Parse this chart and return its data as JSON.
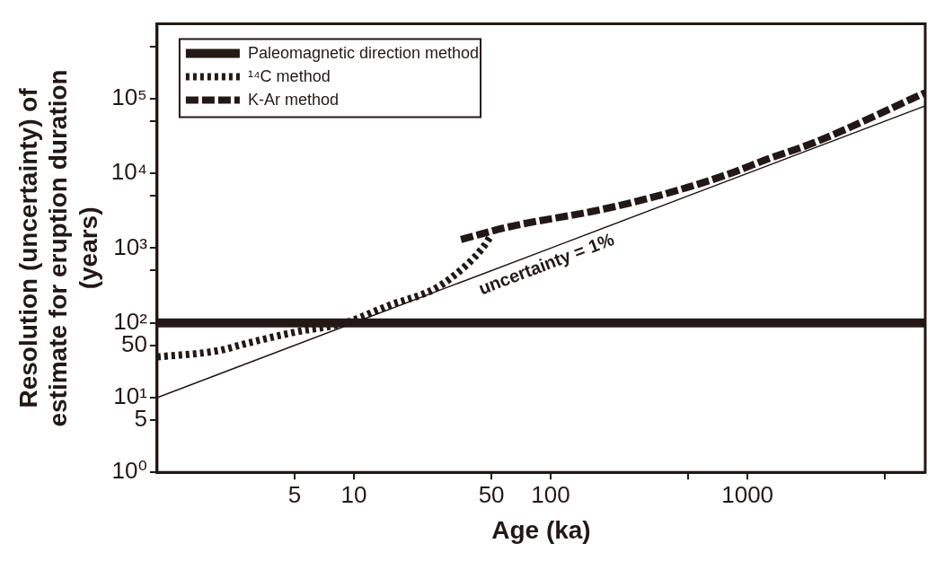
{
  "chart_data": {
    "type": "line",
    "xlabel": "Age (ka)",
    "ylabel": "Resolution (uncertainty) of estimate for eruption duration (years)",
    "log": "xy",
    "grid": false,
    "legend": "top left",
    "marker": "none",
    "xlim": [
      1,
      8000
    ],
    "xticks": [
      5,
      10,
      50,
      100,
      {
        "value": 500,
        "label": null
      },
      1000,
      {
        "value": 5000,
        "label": null
      }
    ],
    "ylim": [
      1,
      1000000
    ],
    "yticks": [
      {
        "value": 1,
        "label": "10⁰"
      },
      5,
      {
        "value": 10,
        "label": "10¹"
      },
      50,
      {
        "value": 100,
        "label": "10²"
      },
      {
        "value": 500,
        "label": null
      },
      {
        "value": 1000,
        "label": "10³"
      },
      {
        "value": 5000,
        "label": null
      },
      {
        "value": 10000,
        "label": "10⁴"
      },
      {
        "value": 50000,
        "label": null
      },
      {
        "value": 100000,
        "label": "10⁵"
      },
      {
        "value": 500000,
        "label": null
      }
    ],
    "series": [
      {
        "name": "Paleomagnetic direction method",
        "color": "#231815",
        "line_style": "solid",
        "x": [
          1,
          8000
        ],
        "values": [
          100,
          100
        ]
      },
      {
        "name": "¹⁴C method",
        "color": "#231815",
        "line_style": "dotted",
        "x": [
          1,
          2,
          3,
          5,
          9,
          15,
          26,
          37,
          45,
          50
        ],
        "values": [
          35,
          42,
          55,
          75,
          100,
          170,
          290,
          580,
          1000,
          1500
        ]
      },
      {
        "name": "K-Ar method",
        "color": "#231815",
        "line_style": "dashed",
        "x": [
          35,
          60,
          183,
          370,
          750,
          1290,
          2200,
          8000
        ],
        "values": [
          1300,
          1900,
          3300,
          5200,
          9200,
          15800,
          26000,
          120000
        ]
      },
      {
        "color": "#231815",
        "line_style": "solid",
        "x": [
          1,
          8000
        ],
        "values": [
          10,
          80000
        ]
      }
    ],
    "annotations": [
      {
        "text": "uncertainty = 1%",
        "x": 90,
        "y": 900
      }
    ]
  }
}
